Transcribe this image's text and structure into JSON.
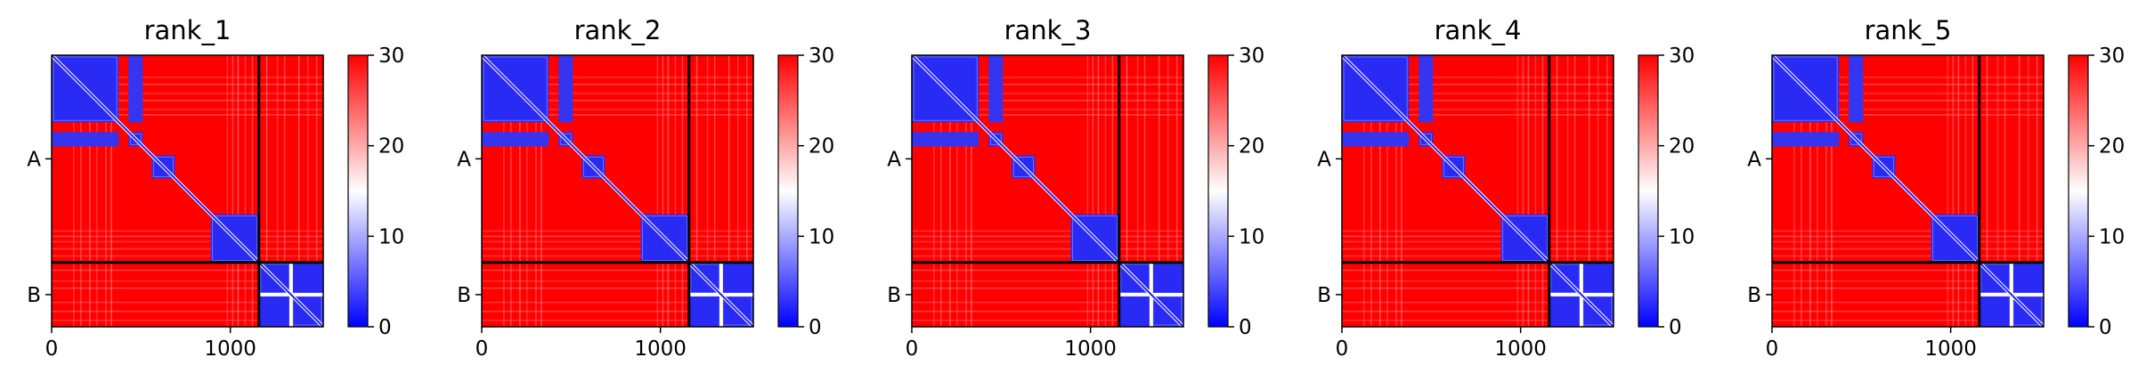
{
  "chart_data": {
    "type": "heatmap",
    "colormap": {
      "name": "bwr",
      "low": "#0000ff",
      "mid": "#ffffff",
      "high": "#ff0000"
    },
    "range": [
      0,
      30
    ],
    "colorbar_ticks": [
      "0",
      "10",
      "20",
      "30"
    ],
    "x_ticks": [
      {
        "value": 0,
        "label": "0"
      },
      {
        "value": 1000,
        "label": "1000"
      }
    ],
    "n_residues": 1520,
    "chain_boundary": 1160,
    "chains": [
      {
        "label": "A",
        "center": 580
      },
      {
        "label": "B",
        "center": 1340
      }
    ],
    "domains": [
      [
        0,
        375
      ],
      [
        430,
        510
      ],
      [
        560,
        690
      ],
      [
        890,
        1160
      ],
      [
        1160,
        1340
      ],
      [
        1340,
        1520
      ]
    ],
    "panels": [
      {
        "title": "rank_1"
      },
      {
        "title": "rank_2"
      },
      {
        "title": "rank_3"
      },
      {
        "title": "rank_4"
      },
      {
        "title": "rank_5"
      }
    ]
  }
}
